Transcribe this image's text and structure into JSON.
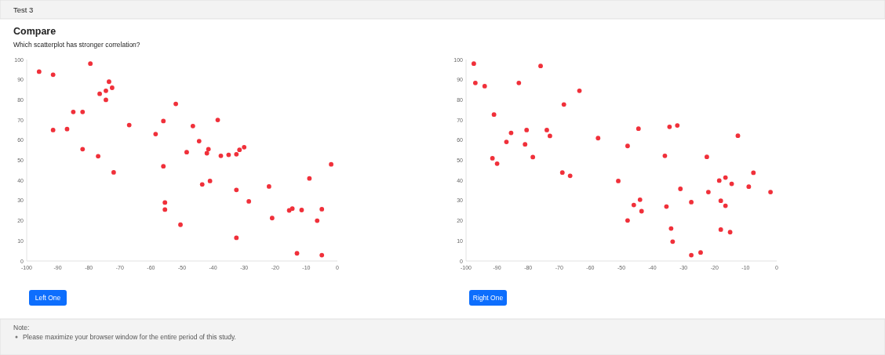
{
  "chart_data": [
    {
      "type": "scatter",
      "title": "Compare",
      "subtitle": "Which scatterplot has stronger correlation?",
      "annotations": [
        "Test 3",
        "Left One"
      ],
      "color": "#f0303a",
      "marker": "circle",
      "grid": false,
      "xlim": [
        -100,
        0
      ],
      "ylim": [
        0,
        100
      ],
      "xticks": [
        -100,
        -90,
        -80,
        -70,
        -60,
        -50,
        -40,
        -30,
        -20,
        -10,
        0
      ],
      "yticks": [
        0,
        10,
        20,
        30,
        40,
        50,
        60,
        70,
        80,
        90,
        100
      ],
      "x": [
        -96,
        -91.5,
        -79.5,
        -73.5,
        -72.5,
        -74.5,
        -76.5,
        -74.5,
        -52,
        -85,
        -82,
        -56,
        -67,
        -91.5,
        -87,
        -58.5,
        -82,
        -77,
        -72,
        -48.5,
        -56,
        -55.5,
        -55.5,
        -50.5,
        -38.5,
        -46.5,
        -44.5,
        -41.5,
        -42,
        -37.5,
        -35,
        -32.5,
        -31.5,
        -30,
        -2,
        -9,
        -43.5,
        -41,
        -32.5,
        -22,
        -28.5,
        -15.5,
        -14.5,
        -11.5,
        -5,
        -6.5,
        -21,
        -32.5,
        -13,
        -5
      ],
      "values": [
        94,
        92.5,
        98,
        89,
        86,
        84.5,
        83,
        80,
        78,
        74,
        74,
        69.5,
        67.5,
        65,
        65.5,
        63,
        55.5,
        52,
        44,
        54,
        47,
        29,
        25.5,
        18,
        70,
        67,
        59.5,
        55.5,
        53.5,
        52.2,
        52.7,
        53,
        55.2,
        56.5,
        48,
        41,
        38,
        39.7,
        35.3,
        37,
        29.6,
        25.1,
        26,
        25.3,
        25.7,
        20,
        21.3,
        11.5,
        3.8,
        2.9
      ]
    },
    {
      "type": "scatter",
      "annotations": [
        "Right One",
        "Note:",
        "Please maximize your browser window for the entire period of this study."
      ],
      "color": "#f0303a",
      "marker": "circle",
      "grid": false,
      "xlim": [
        -100,
        0
      ],
      "ylim": [
        0,
        100
      ],
      "xticks": [
        -100,
        -90,
        -80,
        -70,
        -60,
        -50,
        -40,
        -30,
        -20,
        -10,
        0
      ],
      "yticks": [
        0,
        10,
        20,
        30,
        40,
        50,
        60,
        70,
        80,
        90,
        100
      ],
      "x": [
        -97.5,
        -97,
        -94,
        -91,
        -91.5,
        -90,
        -87,
        -85.5,
        -83,
        -80.5,
        -81,
        -78.5,
        -76,
        -74,
        -73,
        -68.5,
        -69,
        -66.5,
        -63.5,
        -57.5,
        -51,
        -44.5,
        -34.5,
        -32,
        -12.5,
        -48,
        -36,
        -22.5,
        -7.5,
        -16.5,
        -18.5,
        -14.5,
        -9,
        -2,
        -31,
        -22,
        -44,
        -46,
        -43.5,
        -35.5,
        -27.5,
        -18,
        -16.5,
        -48,
        -34,
        -18,
        -15,
        -33.5,
        -24.5,
        -27.5
      ],
      "values": [
        98,
        88.4,
        86.8,
        72.7,
        51,
        48.3,
        59.1,
        63.6,
        88.4,
        65,
        57.9,
        51.6,
        96.8,
        65,
        62.1,
        77.7,
        43.9,
        42.3,
        84.5,
        61,
        39.7,
        65.7,
        66.6,
        67.3,
        62.2,
        57.1,
        52.2,
        51.7,
        43.8,
        41.4,
        39.9,
        38.3,
        36.9,
        34.2,
        35.8,
        34.2,
        30.4,
        27.8,
        24.7,
        27,
        29.2,
        29.9,
        27.4,
        20.1,
        16.1,
        15.6,
        14.3,
        9.6,
        4.2,
        2.9
      ]
    }
  ]
}
